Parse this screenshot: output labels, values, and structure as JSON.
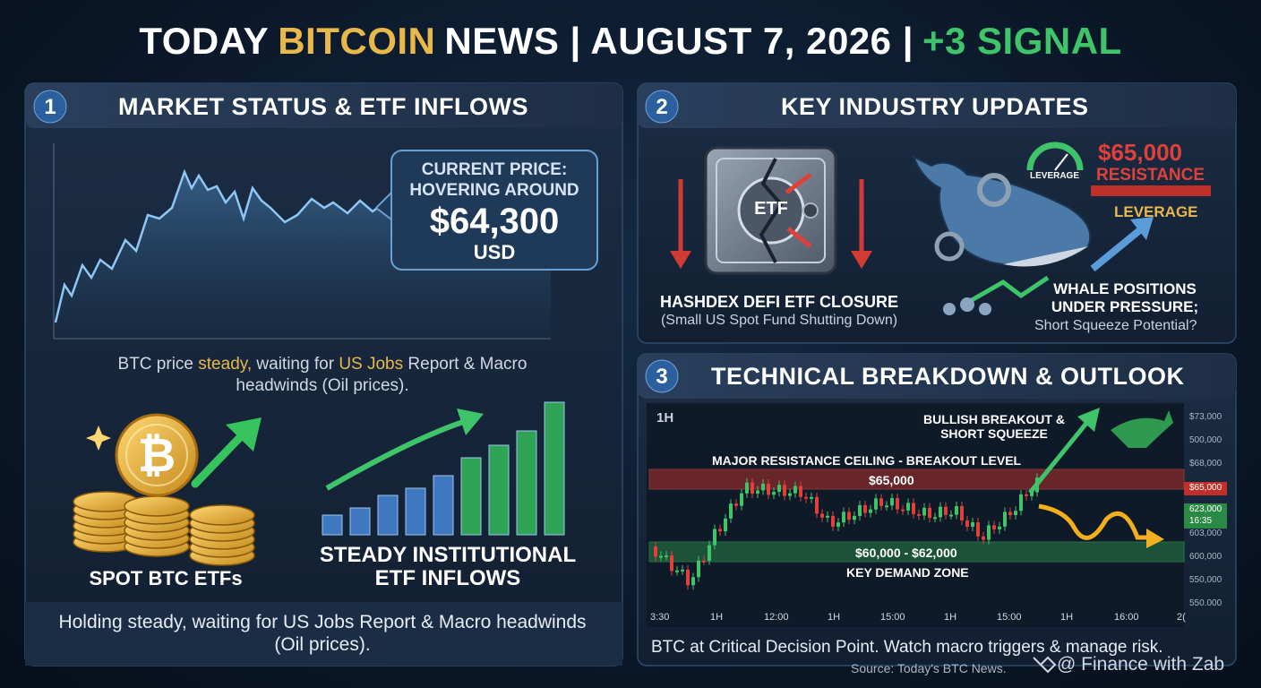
{
  "header": {
    "title": {
      "lead": "TODAY",
      "highlight": "BITCOIN",
      "middle": "NEWS | AUGUST 7, 2026 |",
      "signal": "+3 SIGNAL"
    }
  },
  "market": {
    "number": "1",
    "title": "MARKET STATUS & ETF INFLOWS",
    "callout": {
      "line1": "CURRENT PRICE:",
      "line2": "HOVERING AROUND",
      "price": "$64,300",
      "unit": "USD"
    },
    "caption": {
      "a": "BTC price",
      "b": "steady,",
      "c": "waiting for",
      "d": "US Jobs",
      "e": "Report & Macro headwinds (Oil prices)."
    },
    "etf_label": "SPOT BTC ETFs",
    "inflow_label": "STEADY INSTITUTIONAL ETF INFLOWS",
    "footer": "Holding steady, waiting for US Jobs Report & Macro headwinds (Oil prices)."
  },
  "industry": {
    "number": "2",
    "title": "KEY INDUSTRY UPDATES",
    "safe_label": "ETF",
    "closure_title": "HASHDEX DEFI ETF CLOSURE",
    "closure_note": "(Small US Spot Fund Shutting Down)",
    "gauge_label": "LEVERAGE",
    "resistance_price": "$65,000",
    "resistance_label": "RESISTANCE",
    "leverage_label": "LEVERAGE",
    "whale_title": "WHALE POSITIONS UNDER PRESSURE;",
    "whale_note": "Short Squeeze Potential?"
  },
  "technical": {
    "number": "3",
    "title": "TECHNICAL BREAKDOWN & OUTLOOK",
    "timeframe": "1H",
    "bullish": "BULLISH BREAKOUT & SHORT SQUEEZE",
    "resistance_caption": "MAJOR RESISTANCE CEILING - BREAKOUT LEVEL",
    "resistance_level": "$65,000",
    "demand_level": "$60,000 - $62,000",
    "demand_caption": "KEY DEMAND ZONE",
    "price_axis": [
      "$73,000",
      "500,000",
      "$68,000",
      "$65,000",
      "623,000",
      "16:35",
      "603,000",
      "600,000",
      "550,000",
      "550.000"
    ],
    "time_axis": [
      "3:30",
      "1H",
      "12:00",
      "1H",
      "15:00",
      "1H",
      "15:00",
      "1H",
      "16:00",
      "2("
    ],
    "footer": "BTC at Critical Decision Point. Watch macro triggers & manage risk."
  },
  "footer": {
    "source": "Source: Today's BTC News.",
    "credit": "@ Finance with Zab"
  }
}
